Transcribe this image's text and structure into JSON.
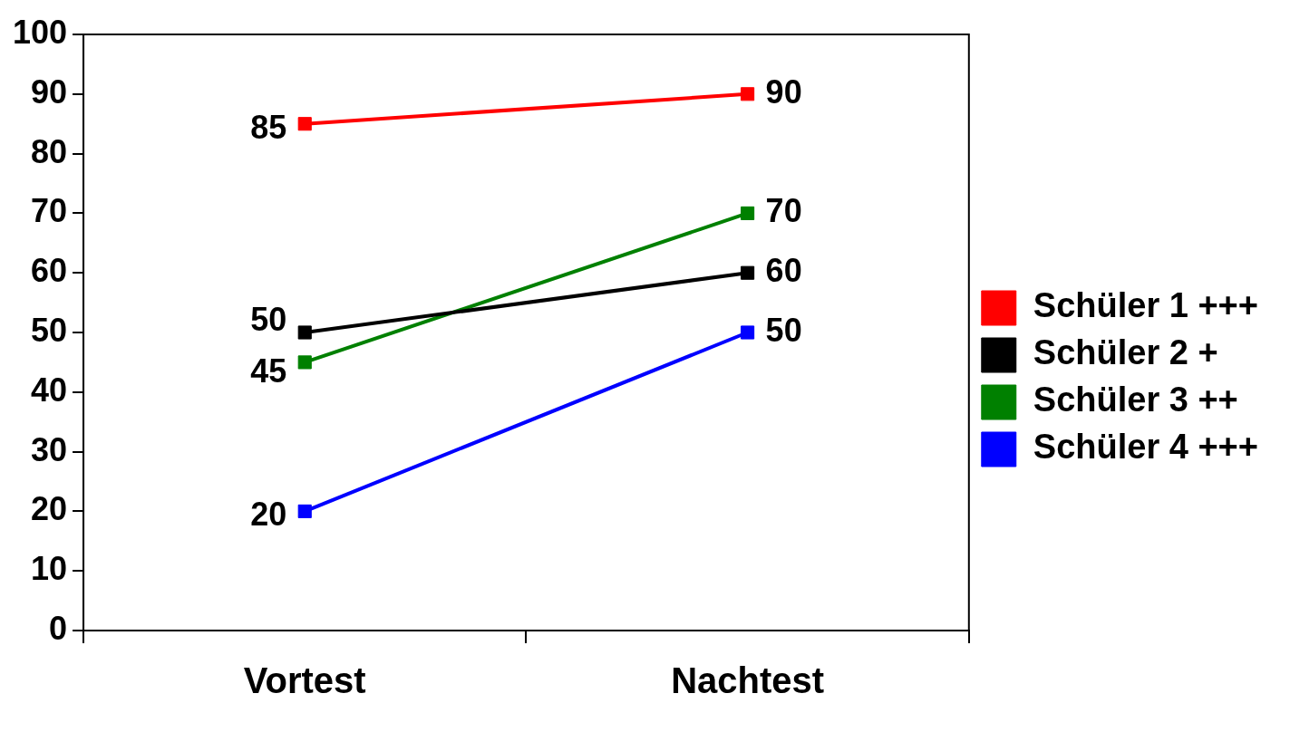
{
  "chart_data": {
    "type": "line",
    "categories": [
      "Vortest",
      "Nachtest"
    ],
    "series": [
      {
        "name": "Schüler 1 +++",
        "color": "#ff0000",
        "values": [
          85,
          90
        ]
      },
      {
        "name": "Schüler 2 +",
        "color": "#000000",
        "values": [
          50,
          60
        ]
      },
      {
        "name": "Schüler 3 ++",
        "color": "#008000",
        "values": [
          45,
          70
        ]
      },
      {
        "name": "Schüler 4 +++",
        "color": "#0000ff",
        "values": [
          20,
          50
        ]
      }
    ],
    "ylim": [
      0,
      100
    ],
    "yticks": [
      0,
      10,
      20,
      30,
      40,
      50,
      60,
      70,
      80,
      90,
      100
    ],
    "grid": false,
    "legend": "right",
    "marker": "square",
    "line_style": "solid",
    "data_labels": true
  }
}
